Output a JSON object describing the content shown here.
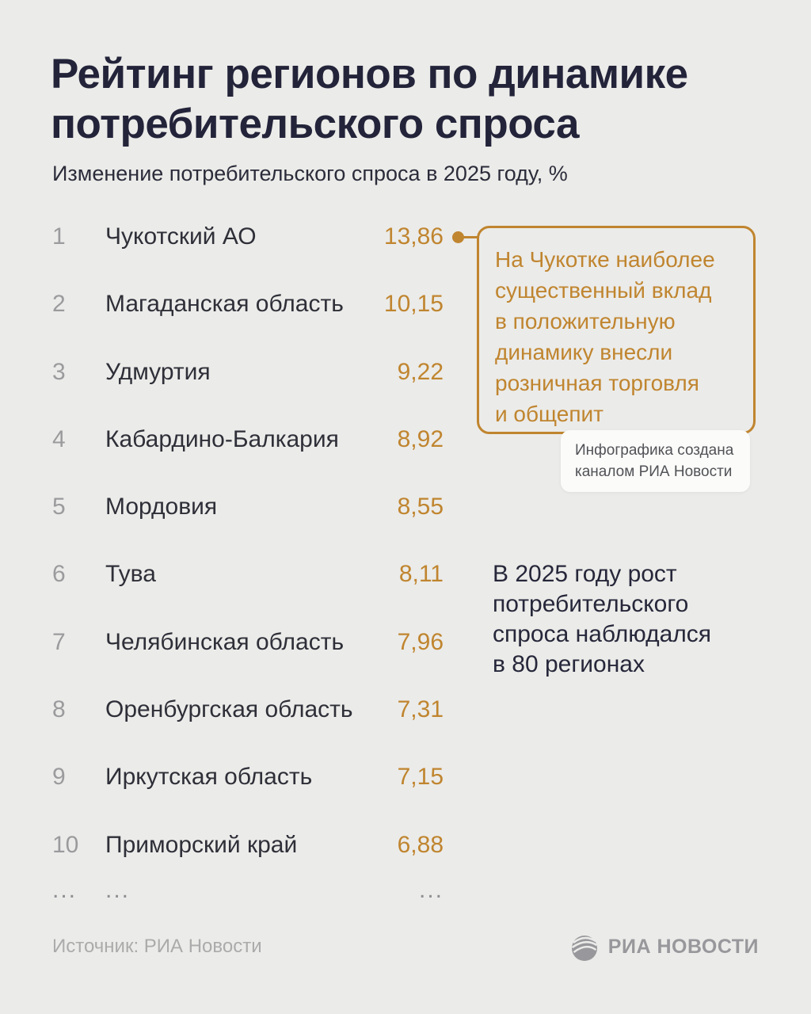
{
  "header": {
    "title_lines": [
      "Рейтинг регионов по динамике",
      "потребительского спроса"
    ],
    "subtitle": "Изменение потребительского спроса в 2025 году, %"
  },
  "chart_data": {
    "type": "table",
    "title": "Рейтинг регионов по динамике потребительского спроса",
    "subtitle": "Изменение потребительского спроса в 2025 году, %",
    "value_unit": "%",
    "columns": [
      "rank",
      "region",
      "value"
    ],
    "rows": [
      {
        "rank": "1",
        "region": "Чукотский АО",
        "value": "13,86"
      },
      {
        "rank": "2",
        "region": "Магаданская область",
        "value": "10,15"
      },
      {
        "rank": "3",
        "region": "Удмуртия",
        "value": "9,22"
      },
      {
        "rank": "4",
        "region": "Кабардино-Балкария",
        "value": "8,92"
      },
      {
        "rank": "5",
        "region": "Мордовия",
        "value": "8,55"
      },
      {
        "rank": "6",
        "region": "Тува",
        "value": "8,11"
      },
      {
        "rank": "7",
        "region": "Челябинская область",
        "value": "7,96"
      },
      {
        "rank": "8",
        "region": "Оренбургская область",
        "value": "7,31"
      },
      {
        "rank": "9",
        "region": "Иркутская область",
        "value": "7,15"
      },
      {
        "rank": "10",
        "region": "Приморский край",
        "value": "6,88"
      }
    ],
    "ellipsis_row": {
      "rank": "...",
      "region": "...",
      "value": "..."
    }
  },
  "callout": {
    "lines": [
      "На Чукотке наиболее",
      "существенный вклад",
      "в положительную",
      "динамику внесли",
      "розничная торговля",
      "и общепит"
    ],
    "points_to_value": "13,86"
  },
  "credit_badge": {
    "lines": [
      "Инфографика создана",
      "каналом РИА Новости"
    ]
  },
  "side_note": {
    "lines": [
      "В 2025 году рост",
      "потребительского",
      "спроса наблюдался",
      "в 80 регионах"
    ]
  },
  "footer": {
    "source": "Источник: РИА Новости",
    "logo_text": "РИА НОВОСТИ"
  },
  "colors": {
    "background": "#ebebe9",
    "title": "#23243a",
    "accent_orange": "#c0852f",
    "rank_gray": "#9b9b9e",
    "region_dark": "#2e2f38",
    "muted_gray": "#ababab",
    "logo_gray": "#98989c",
    "badge_bg": "#fbfbf9",
    "badge_text": "#515257"
  }
}
